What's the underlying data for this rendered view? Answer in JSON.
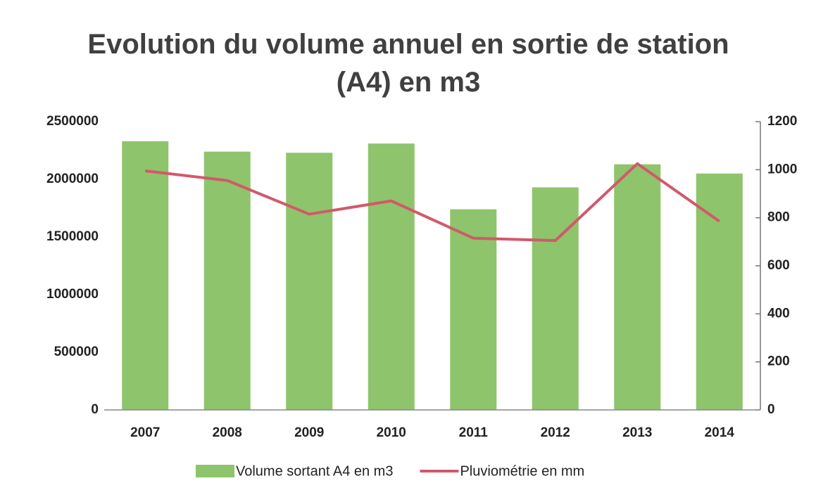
{
  "chart_data": {
    "type": "bar",
    "title": "Evolution du volume annuel en sortie de station (A4) en m3",
    "categories": [
      "2007",
      "2008",
      "2009",
      "2010",
      "2011",
      "2012",
      "2013",
      "2014"
    ],
    "series": [
      {
        "name": "Volume sortant A4 en m3",
        "type": "bar",
        "color": "#8ec46b",
        "values": [
          2330000,
          2240000,
          2230000,
          2310000,
          1740000,
          1930000,
          2130000,
          2050000
        ]
      },
      {
        "name": "Pluviométrie en mm",
        "type": "line",
        "axis": "y2",
        "color": "#d2596b",
        "values": [
          995,
          955,
          815,
          870,
          715,
          705,
          1025,
          785
        ]
      }
    ],
    "ylim": [
      0,
      2500000
    ],
    "yticks": [
      0,
      500000,
      1000000,
      1500000,
      2000000,
      2500000
    ],
    "y2lim": [
      0,
      1200
    ],
    "y2ticks": [
      0,
      200,
      400,
      600,
      800,
      1000,
      1200
    ],
    "legend": "bottom"
  }
}
